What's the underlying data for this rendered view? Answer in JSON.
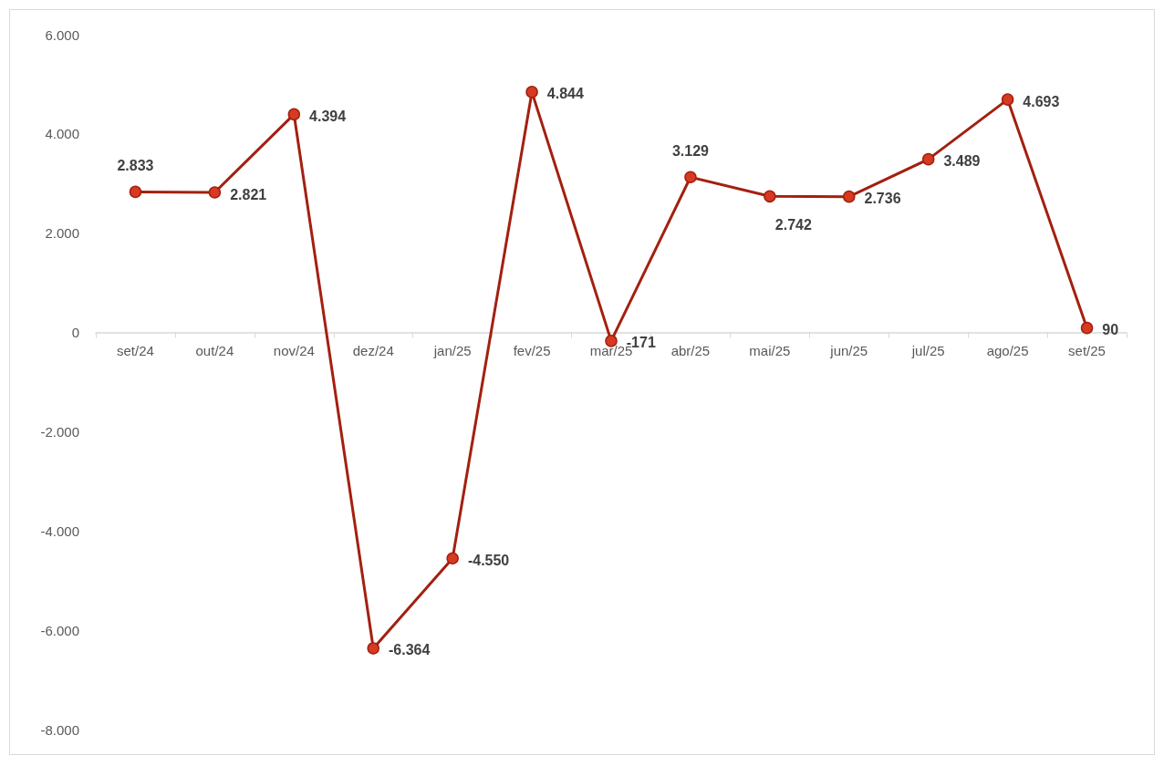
{
  "chart_data": {
    "type": "line",
    "categories": [
      "set/24",
      "out/24",
      "nov/24",
      "dez/24",
      "jan/25",
      "fev/25",
      "mar/25",
      "abr/25",
      "mai/25",
      "jun/25",
      "jul/25",
      "ago/25",
      "set/25"
    ],
    "series": [
      {
        "color": "#a3200f",
        "values": [
          2833,
          2821,
          4394,
          -6364,
          -4550,
          4844,
          -171,
          3129,
          2742,
          2736,
          3489,
          4693,
          90
        ],
        "value_labels": [
          "2.833",
          "2.821",
          "4.394",
          "-6.364",
          "-4.550",
          "4.844",
          "-171",
          "3.129",
          "2.742",
          "2.736",
          "3.489",
          "4.693",
          "90"
        ]
      }
    ],
    "ylim": [
      -8000,
      6000
    ],
    "yticks": [
      {
        "value": -8000,
        "label": "-8.000"
      },
      {
        "value": -6000,
        "label": "-6.000"
      },
      {
        "value": -4000,
        "label": "-4.000"
      },
      {
        "value": -2000,
        "label": "-2.000"
      },
      0,
      {
        "value": 2000,
        "label": "2.000"
      },
      {
        "value": 4000,
        "label": "4.000"
      },
      {
        "value": 6000,
        "label": "6.000"
      }
    ],
    "grid": false,
    "marker": "circle",
    "line_style": "solid"
  }
}
